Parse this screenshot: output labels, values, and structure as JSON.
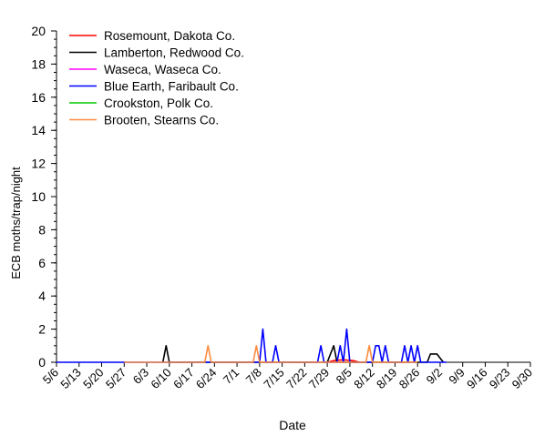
{
  "chart_data": {
    "type": "line",
    "xlabel": "Date",
    "ylabel": "ECB moths/trap/night",
    "ylim": [
      0,
      20
    ],
    "yticks": [
      0,
      2,
      4,
      6,
      8,
      10,
      12,
      14,
      16,
      18,
      20
    ],
    "x_start": "5/6",
    "x_end": "9/30",
    "xticks": [
      "5/6",
      "5/13",
      "5/20",
      "5/27",
      "6/3",
      "6/10",
      "6/17",
      "6/24",
      "7/1",
      "7/8",
      "7/15",
      "7/22",
      "7/29",
      "8/5",
      "8/12",
      "8/19",
      "8/26",
      "9/2",
      "9/9",
      "9/16",
      "9/23",
      "9/30"
    ],
    "legend_position": "top-left",
    "grid": false,
    "series": [
      {
        "name": "Rosemount, Dakota Co.",
        "color": "#ff0000",
        "points": [
          [
            "7/29",
            0
          ],
          [
            "7/31",
            0.1
          ],
          [
            "8/3",
            0.15
          ],
          [
            "8/6",
            0.1
          ],
          [
            "8/8",
            0
          ]
        ]
      },
      {
        "name": "Lamberton, Redwood Co.",
        "color": "#000000",
        "points": [
          [
            "6/8",
            0
          ],
          [
            "6/9",
            1
          ],
          [
            "6/10",
            0
          ],
          [
            "7/29",
            0
          ],
          [
            "7/31",
            1
          ],
          [
            "8/1",
            0
          ],
          [
            "8/29",
            0
          ],
          [
            "8/30",
            0.5
          ],
          [
            "9/1",
            0.5
          ],
          [
            "9/3",
            0
          ]
        ]
      },
      {
        "name": "Waseca, Waseca Co.",
        "color": "#ff00ff",
        "points": []
      },
      {
        "name": "Blue Earth, Faribault Co.",
        "color": "#0000ff",
        "points": [
          [
            "5/6",
            0
          ],
          [
            "5/27",
            0
          ],
          [
            "7/8",
            0
          ],
          [
            "7/9",
            2
          ],
          [
            "7/10",
            0
          ],
          [
            "7/12",
            0
          ],
          [
            "7/13",
            1
          ],
          [
            "7/14",
            0
          ],
          [
            "7/26",
            0
          ],
          [
            "7/27",
            1
          ],
          [
            "7/28",
            0
          ],
          [
            "8/1",
            0
          ],
          [
            "8/2",
            1
          ],
          [
            "8/3",
            0
          ],
          [
            "8/4",
            2
          ],
          [
            "8/5",
            0
          ],
          [
            "8/12",
            0
          ],
          [
            "8/13",
            1
          ],
          [
            "8/14",
            1
          ],
          [
            "8/15",
            0
          ],
          [
            "8/16",
            1
          ],
          [
            "8/17",
            0
          ],
          [
            "8/21",
            0
          ],
          [
            "8/22",
            1
          ],
          [
            "8/23",
            0
          ],
          [
            "8/24",
            1
          ],
          [
            "8/25",
            0
          ],
          [
            "8/26",
            1
          ],
          [
            "8/27",
            0
          ],
          [
            "9/2",
            0
          ],
          [
            "9/4",
            0
          ]
        ]
      },
      {
        "name": "Crookston, Polk Co.",
        "color": "#00cc00",
        "points": []
      },
      {
        "name": "Brooten, Stearns Co.",
        "color": "#ff8c40",
        "points": [
          [
            "5/27",
            0
          ],
          [
            "6/21",
            0
          ],
          [
            "6/22",
            1
          ],
          [
            "6/23",
            0
          ],
          [
            "7/6",
            0
          ],
          [
            "7/7",
            1
          ],
          [
            "7/8",
            0
          ],
          [
            "8/10",
            0
          ],
          [
            "8/11",
            1
          ],
          [
            "8/12",
            0
          ],
          [
            "8/26",
            0
          ]
        ]
      }
    ]
  }
}
